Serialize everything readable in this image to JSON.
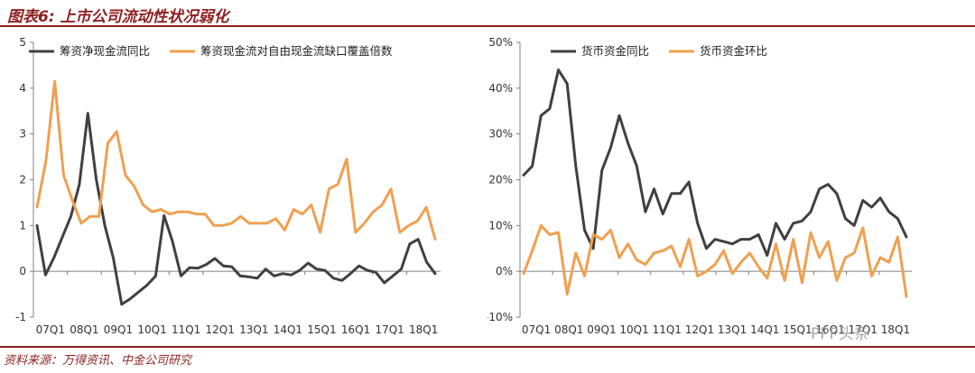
{
  "title": "图表6:  上市公司流动性状况弱化",
  "source": "资料来源：万得资讯、中金公司研究",
  "watermark": "PPP头条",
  "chart_data": [
    {
      "type": "line",
      "x_tick_labels": [
        "07Q1",
        "08Q1",
        "09Q1",
        "10Q1",
        "11Q1",
        "12Q1",
        "13Q1",
        "14Q1",
        "15Q1",
        "16Q1",
        "17Q1",
        "18Q1"
      ],
      "y_tick_labels": [
        "-1",
        "0",
        "1",
        "2",
        "3",
        "4",
        "5"
      ],
      "ylim": [
        -1,
        5
      ],
      "grid": false,
      "legend_position": "top",
      "series": [
        {
          "name": "筹资净现金流同比",
          "color": "#404040",
          "values": [
            1.0,
            -0.08,
            0.3,
            0.75,
            1.2,
            1.9,
            3.45,
            2.0,
            1.0,
            0.3,
            -0.72,
            -0.6,
            -0.45,
            -0.3,
            -0.1,
            1.22,
            0.65,
            -0.1,
            0.08,
            0.07,
            0.15,
            0.28,
            0.12,
            0.1,
            -0.1,
            -0.12,
            -0.15,
            0.05,
            -0.1,
            -0.05,
            -0.08,
            0.02,
            0.18,
            0.05,
            0.02,
            -0.15,
            -0.2,
            -0.05,
            0.12,
            0.02,
            -0.02,
            -0.25,
            -0.1,
            0.05,
            0.6,
            0.7,
            0.2,
            -0.05
          ]
        },
        {
          "name": "筹资现金流对自由现金流缺口覆盖倍数",
          "color": "#f0a050",
          "values": [
            1.4,
            2.4,
            4.15,
            2.1,
            1.55,
            1.05,
            1.2,
            1.2,
            2.8,
            3.05,
            2.1,
            1.85,
            1.45,
            1.3,
            1.35,
            1.25,
            1.3,
            1.3,
            1.25,
            1.25,
            1.0,
            1.0,
            1.05,
            1.2,
            1.05,
            1.05,
            1.05,
            1.15,
            0.9,
            1.35,
            1.25,
            1.45,
            0.85,
            1.8,
            1.9,
            2.45,
            0.85,
            1.05,
            1.3,
            1.45,
            1.8,
            0.85,
            1.0,
            1.1,
            1.4,
            0.7
          ]
        }
      ]
    },
    {
      "type": "line",
      "x_tick_labels": [
        "07Q1",
        "08Q1",
        "09Q1",
        "10Q1",
        "11Q1",
        "12Q1",
        "13Q1",
        "14Q1",
        "15Q1",
        "16Q1",
        "17Q1",
        "18Q1"
      ],
      "y_tick_labels": [
        "-10%",
        "0%",
        "10%",
        "20%",
        "30%",
        "40%",
        "50%"
      ],
      "ylim": [
        -10,
        50
      ],
      "grid": false,
      "legend_position": "top",
      "series": [
        {
          "name": "货币资金同比",
          "color": "#404040",
          "values": [
            21,
            23,
            34,
            35.5,
            44,
            41,
            23,
            9,
            5,
            22,
            27,
            34,
            28,
            23,
            13,
            18,
            12.5,
            17,
            17,
            19.5,
            10.5,
            5,
            7,
            6.5,
            6,
            7,
            7,
            8,
            3.5,
            10.5,
            7,
            10.5,
            11,
            13,
            18,
            19,
            17,
            11.5,
            10,
            15.5,
            14,
            16,
            13,
            11.5,
            7.5
          ]
        },
        {
          "name": "货币资金环比",
          "color": "#f0a050",
          "values": [
            -0.5,
            4.5,
            10,
            8,
            8.5,
            -5,
            4,
            -1,
            8,
            7,
            9,
            3,
            6,
            2.5,
            1.5,
            4,
            4.5,
            5.5,
            1,
            7,
            -1,
            0,
            1.5,
            4.5,
            -0.5,
            2,
            4,
            1,
            -1.5,
            6,
            -2,
            7,
            -2.5,
            8.5,
            3,
            6.5,
            -2,
            3,
            4,
            9.5,
            -1,
            3,
            2,
            7.5,
            -5.5
          ]
        }
      ]
    }
  ]
}
